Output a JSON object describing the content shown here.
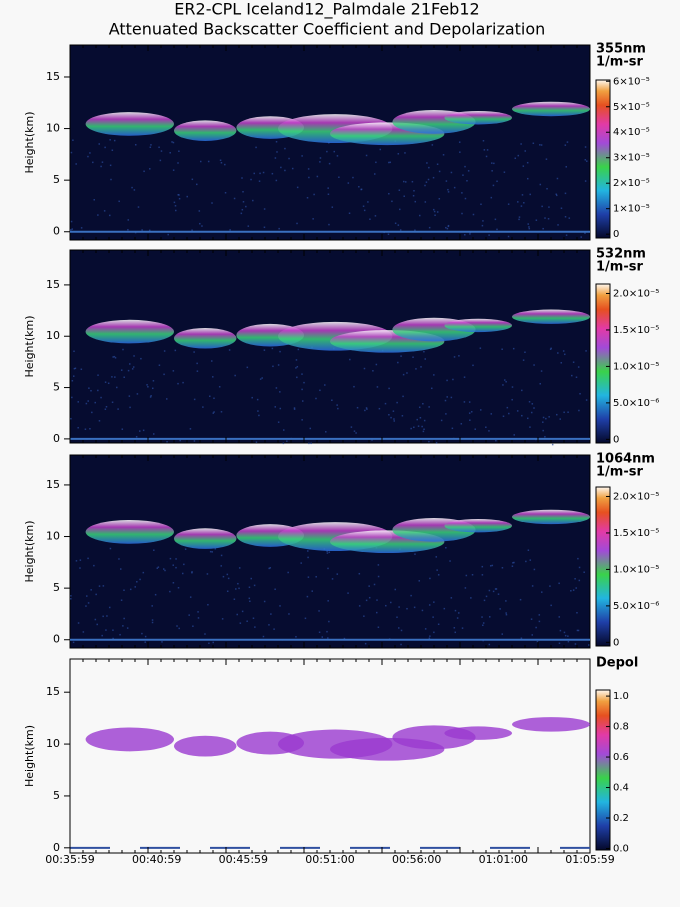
{
  "chart_data": [
    {
      "type": "heatmap",
      "title": "ER2-CPL Iceland12_Palmdale 21Feb12",
      "subtitle": "Attenuated Backscatter Coefficient and Depolarization",
      "ylabel": "Height(km)",
      "ylim": [
        -0.8,
        18.1
      ],
      "yticks": [
        0,
        5,
        10,
        15
      ],
      "colorbar": {
        "labels": [
          "355nm",
          "1/m-sr"
        ],
        "lim": [
          -1.5e-06,
          6.05e-05
        ],
        "ticks": [
          0,
          {
            "value": 1e-05,
            "label": "1×10⁻⁵"
          },
          {
            "value": 2e-05,
            "label": "2×10⁻⁵"
          },
          {
            "value": 3e-05,
            "label": "3×10⁻⁵"
          },
          {
            "value": 4e-05,
            "label": "4×10⁻⁵"
          },
          {
            "value": 5e-05,
            "label": "5×10⁻⁵"
          },
          {
            "value": 6e-05,
            "label": "6×10⁻⁵"
          }
        ]
      }
    },
    {
      "type": "heatmap",
      "ylabel": "Height(km)",
      "ylim": [
        -0.4,
        18.4
      ],
      "yticks": [
        0,
        5,
        10,
        15
      ],
      "colorbar": {
        "labels": [
          "532nm",
          "1/m-sr"
        ],
        "lim": [
          -5e-07,
          2.13e-05
        ],
        "ticks": [
          0,
          {
            "value": 5e-06,
            "label": "5.0×10⁻⁶"
          },
          {
            "value": 1e-05,
            "label": "1.0×10⁻⁵"
          },
          {
            "value": 1.5e-05,
            "label": "1.5×10⁻⁵"
          },
          {
            "value": 2e-05,
            "label": "2.0×10⁻⁵"
          }
        ]
      }
    },
    {
      "type": "heatmap",
      "ylabel": "Height(km)",
      "ylim": [
        -0.8,
        17.9
      ],
      "yticks": [
        0,
        5,
        10,
        15
      ],
      "colorbar": {
        "labels": [
          "1064nm",
          "1/m-sr"
        ],
        "lim": [
          -5e-07,
          2.13e-05
        ],
        "ticks": [
          0,
          {
            "value": 5e-06,
            "label": "5.0×10⁻⁶"
          },
          {
            "value": 1e-05,
            "label": "1.0×10⁻⁵"
          },
          {
            "value": 1.5e-05,
            "label": "1.5×10⁻⁵"
          },
          {
            "value": 2e-05,
            "label": "2.0×10⁻⁵"
          }
        ]
      }
    },
    {
      "type": "heatmap",
      "ylabel": "Height(km)",
      "ylim": [
        -0.5,
        18.2
      ],
      "yticks": [
        0,
        5,
        10,
        15
      ],
      "colorbar": {
        "labels": [
          "Depol"
        ],
        "lim": [
          -0.01,
          1.04
        ],
        "ticks": [
          {
            "value": 0,
            "label": "0.0"
          },
          {
            "value": 0.2,
            "label": "0.2"
          },
          {
            "value": 0.4,
            "label": "0.4"
          },
          {
            "value": 0.6,
            "label": "0.6"
          },
          {
            "value": 0.8,
            "label": "0.8"
          },
          {
            "value": 1,
            "label": "1.0"
          }
        ]
      },
      "xticks": [
        "00:35:59",
        "00:40:59",
        "00:45:59",
        "00:51:00",
        "00:56:00",
        "01:01:00",
        "01:05:59"
      ]
    }
  ]
}
